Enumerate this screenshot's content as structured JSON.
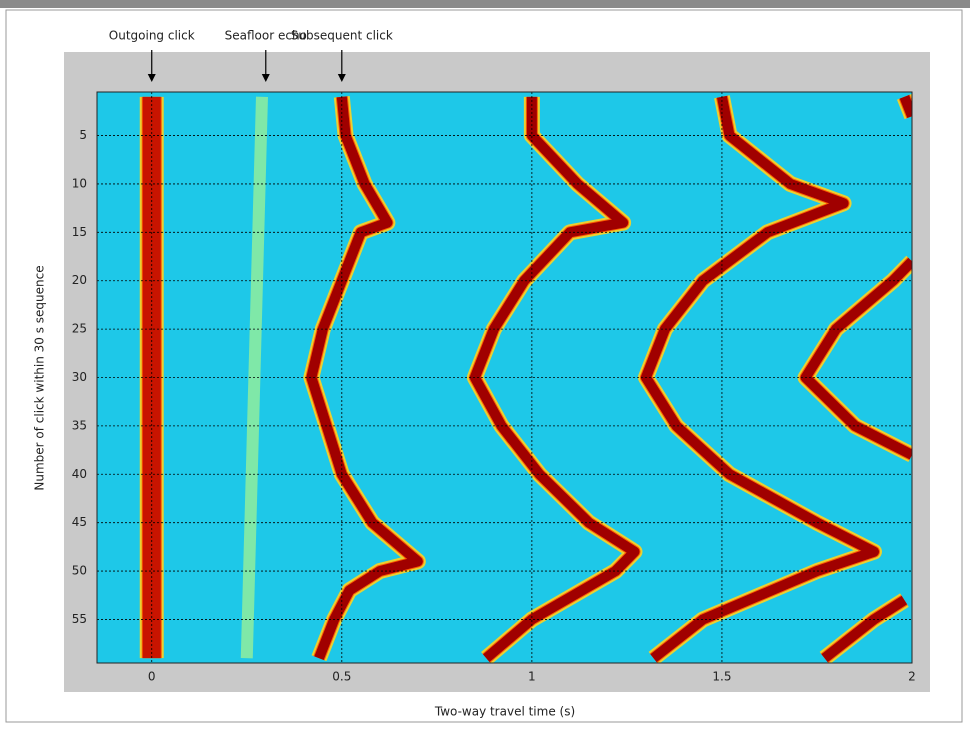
{
  "chart_data": {
    "type": "echogram",
    "xlabel": "Two-way travel time (s)",
    "ylabel": "Number of click within 30 s sequence",
    "xlim": [
      -0.144,
      2
    ],
    "ylim": [
      0.5,
      59.5
    ],
    "y_inverted": true,
    "xticks": [
      0,
      0.5,
      1,
      1.5,
      2
    ],
    "yticks": [
      5,
      10,
      15,
      20,
      25,
      30,
      35,
      40,
      45,
      50,
      55
    ],
    "grid": true,
    "background": "#1ec8e8",
    "annotations": [
      {
        "text": "Outgoing click",
        "x": 0
      },
      {
        "text": "Seafloor echo",
        "x": 0.3
      },
      {
        "text": "Subsequent click",
        "x": 0.5
      }
    ],
    "series": [
      {
        "color": "#c81400",
        "x": [
          0,
          0
        ],
        "y": [
          1,
          59
        ]
      },
      {
        "color": "#7fe8a8",
        "x": [
          0.29,
          0.25
        ],
        "y": [
          1,
          59
        ]
      },
      {
        "color": "#a00000",
        "x": [
          0.5,
          0.51,
          0.56,
          0.62,
          0.55,
          0.5,
          0.45,
          0.42,
          0.46,
          0.5,
          0.58,
          0.7,
          0.6,
          0.52,
          0.48,
          0.44
        ],
        "y": [
          1,
          5,
          10,
          14,
          15,
          20,
          25,
          30,
          35,
          40,
          45,
          49,
          50,
          52,
          55,
          59
        ]
      },
      {
        "color": "#a00000",
        "x": [
          1.0,
          1.0,
          1.12,
          1.24,
          1.1,
          0.98,
          0.9,
          0.85,
          0.92,
          1.02,
          1.15,
          1.27,
          1.22,
          1.0,
          0.88
        ],
        "y": [
          1,
          5,
          10,
          14,
          15,
          20,
          25,
          30,
          35,
          40,
          45,
          48,
          50,
          55,
          59
        ]
      },
      {
        "color": "#a00000",
        "x": [
          1.5,
          1.52,
          1.68,
          1.82,
          1.62,
          1.45,
          1.35,
          1.3,
          1.38,
          1.52,
          1.75,
          1.9,
          1.75,
          1.45,
          1.32
        ],
        "y": [
          1,
          5,
          10,
          12,
          15,
          20,
          25,
          30,
          35,
          40,
          45,
          48,
          50,
          55,
          59
        ]
      },
      {
        "color": "#a00000",
        "x": [
          1.98,
          2.0,
          null,
          2.0,
          1.95,
          1.8,
          1.72,
          1.85,
          2.0,
          null,
          1.98,
          1.9,
          1.77
        ],
        "y": [
          1,
          3,
          null,
          18,
          20,
          25,
          30,
          35,
          38,
          null,
          53,
          55,
          59
        ]
      }
    ]
  }
}
